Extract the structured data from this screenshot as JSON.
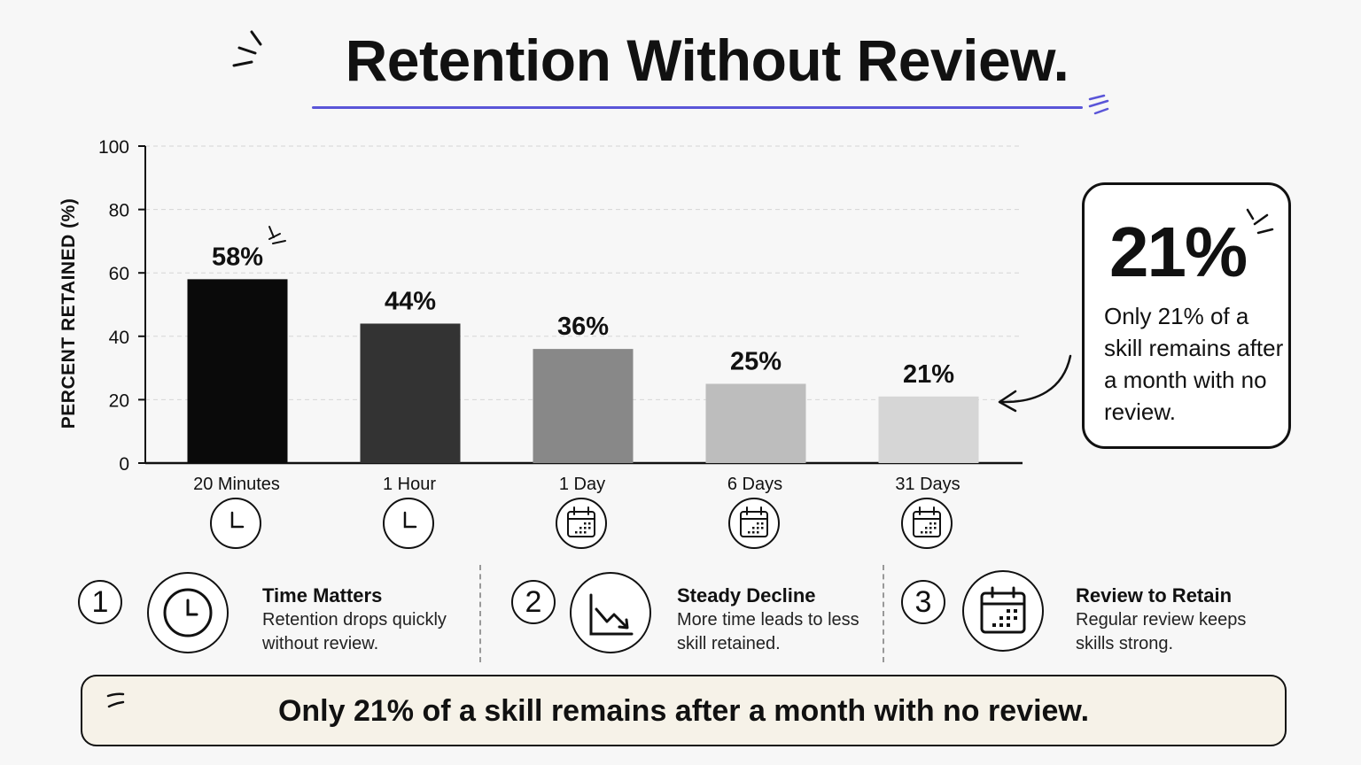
{
  "title": "Retention Without Review.",
  "colors": {
    "accent": "#5a55d8",
    "banner_bg": "#f6f2e8"
  },
  "chart_data": {
    "type": "bar",
    "categories": [
      "20 Minutes",
      "1 Hour",
      "1 Day",
      "6 Days",
      "31 Days"
    ],
    "values": [
      58,
      44,
      36,
      25,
      21
    ],
    "value_labels": [
      "58%",
      "44%",
      "36%",
      "25%",
      "21%"
    ],
    "bar_colors": [
      "#0a0a0a",
      "#333333",
      "#888888",
      "#bdbdbd",
      "#d6d6d6"
    ],
    "category_icons": [
      "clock-icon",
      "clock-icon",
      "calendar-icon",
      "calendar-icon",
      "calendar-icon"
    ],
    "ylabel": "PERCENT RETAINED (%)",
    "xlabel": "",
    "ylim": [
      0,
      100
    ],
    "yticks": [
      0,
      20,
      40,
      60,
      80,
      100
    ],
    "grid": true
  },
  "callout": {
    "big": "21%",
    "text": "Only 21% of a skill remains after a month with no review."
  },
  "features": [
    {
      "number": "1",
      "icon": "clock-icon",
      "title": "Time Matters",
      "desc": "Retention drops quickly without review."
    },
    {
      "number": "2",
      "icon": "decline-chart-icon",
      "title": "Steady Decline",
      "desc": "More time leads to less skill retained."
    },
    {
      "number": "3",
      "icon": "calendar-icon",
      "title": "Review to Retain",
      "desc": "Regular review keeps skills strong."
    }
  ],
  "banner": "Only 21% of a skill remains after a month with no review."
}
